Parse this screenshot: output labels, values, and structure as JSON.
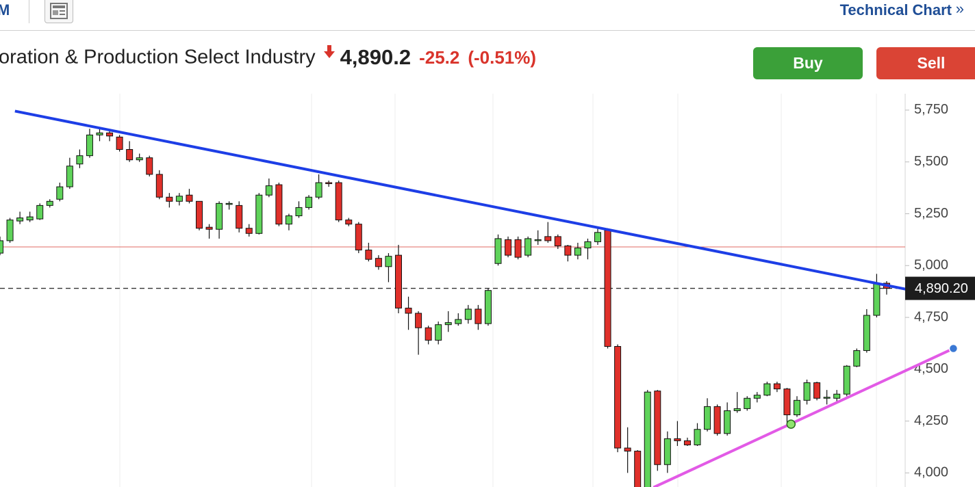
{
  "header": {
    "left_fragment": "M",
    "link": "Technical Chart",
    "link_arrow": "»"
  },
  "quote": {
    "name": "oration & Production Select Industry",
    "price": "4,890.2",
    "change": "-25.2",
    "change_pct": "(-0.51%)"
  },
  "buttons": {
    "buy": "Buy",
    "sell": "Sell"
  },
  "chart_data": {
    "type": "candlestick",
    "up_color": "#5fd35a",
    "down_color": "#e0302a",
    "ylim": [
      3932,
      5829
    ],
    "yticks": [
      {
        "value": 5750,
        "label": "5,750"
      },
      {
        "value": 5500,
        "label": "5,500"
      },
      {
        "value": 5250,
        "label": "5,250"
      },
      {
        "value": 5000,
        "label": "5,000"
      },
      {
        "value": 4750,
        "label": "4,750"
      },
      {
        "value": 4500,
        "label": "4,500"
      },
      {
        "value": 4250,
        "label": "4,250"
      },
      {
        "value": 4000,
        "label": "4,000"
      }
    ],
    "open": [
      5060,
      5120,
      5215,
      5220,
      5225,
      5290,
      5320,
      5380,
      5490,
      5530,
      5630,
      5640,
      5620,
      5560,
      5510,
      5520,
      5440,
      5330,
      5310,
      5340,
      5310,
      5185,
      5175,
      5295,
      5290,
      5180,
      5155,
      5340,
      5390,
      5200,
      5240,
      5280,
      5330,
      5400,
      5400,
      5220,
      5200,
      5075,
      5035,
      4995,
      5050,
      4795,
      4770,
      4700,
      4640,
      4715,
      4720,
      4740,
      4790,
      4720,
      5010,
      5125,
      5125,
      5050,
      5120,
      5140,
      5140,
      5095,
      5050,
      5085,
      5115,
      5170,
      4610,
      4120,
      4105,
      3930,
      4395,
      4040,
      4165,
      4155,
      4135,
      4210,
      4320,
      4190,
      4300,
      4310,
      4360,
      4375,
      4430,
      4405,
      4280,
      4350,
      4435,
      4360,
      4360,
      4380,
      4515,
      4590,
      4760,
      4915
    ],
    "high": [
      5140,
      5230,
      5260,
      5260,
      5300,
      5320,
      5400,
      5520,
      5560,
      5660,
      5660,
      5650,
      5630,
      5600,
      5540,
      5530,
      5460,
      5350,
      5350,
      5370,
      5310,
      5200,
      5310,
      5310,
      5310,
      5200,
      5350,
      5420,
      5400,
      5250,
      5310,
      5340,
      5440,
      5410,
      5410,
      5230,
      5210,
      5110,
      5050,
      5060,
      5100,
      4850,
      4780,
      4710,
      4730,
      4780,
      4770,
      4810,
      4810,
      4890,
      5150,
      5140,
      5140,
      5140,
      5170,
      5210,
      5150,
      5100,
      5110,
      5130,
      5180,
      5180,
      4620,
      4220,
      4110,
      4400,
      4400,
      4200,
      4250,
      4170,
      4240,
      4360,
      4330,
      4340,
      4390,
      4370,
      4390,
      4440,
      4440,
      4410,
      4370,
      4450,
      4440,
      4400,
      4400,
      4520,
      4600,
      4790,
      4960,
      4925
    ],
    "low": [
      5050,
      5110,
      5200,
      5210,
      5220,
      5280,
      5310,
      5370,
      5470,
      5520,
      5600,
      5600,
      5550,
      5500,
      5500,
      5430,
      5320,
      5280,
      5290,
      5300,
      5170,
      5130,
      5130,
      5270,
      5160,
      5140,
      5150,
      5330,
      5190,
      5170,
      5230,
      5270,
      5320,
      5380,
      5210,
      5190,
      5060,
      5020,
      4980,
      4920,
      4770,
      4690,
      4570,
      4620,
      4620,
      4680,
      4710,
      4720,
      4690,
      4710,
      5000,
      5040,
      5030,
      5040,
      5100,
      5110,
      5080,
      5020,
      5030,
      5030,
      5100,
      4600,
      4100,
      4000,
      3930,
      3930,
      4010,
      4000,
      4130,
      4130,
      4130,
      4200,
      4180,
      4180,
      4290,
      4300,
      4340,
      4370,
      4390,
      4240,
      4270,
      4330,
      4350,
      4330,
      4340,
      4370,
      4510,
      4580,
      4750,
      4860
    ],
    "close": [
      5120,
      5220,
      5230,
      5235,
      5290,
      5310,
      5380,
      5480,
      5530,
      5630,
      5640,
      5625,
      5560,
      5510,
      5520,
      5440,
      5330,
      5310,
      5335,
      5310,
      5180,
      5175,
      5300,
      5300,
      5180,
      5155,
      5340,
      5385,
      5200,
      5240,
      5280,
      5330,
      5400,
      5395,
      5220,
      5200,
      5075,
      5030,
      4995,
      5045,
      4795,
      4770,
      4700,
      4640,
      4715,
      4725,
      4740,
      4790,
      4720,
      4880,
      5130,
      5050,
      5040,
      5130,
      5125,
      5120,
      5095,
      5050,
      5085,
      5115,
      5160,
      4610,
      4120,
      4105,
      3930,
      4390,
      4040,
      4165,
      4155,
      4135,
      4210,
      4320,
      4190,
      4300,
      4310,
      4360,
      4375,
      4430,
      4405,
      4280,
      4350,
      4435,
      4360,
      4365,
      4380,
      4515,
      4590,
      4760,
      4915,
      4890.2
    ],
    "reference_line": {
      "value": 5090,
      "color": "#e06a60"
    },
    "last_price": 4890.2,
    "last_price_label": "4,890.20",
    "trendlines": [
      {
        "color": "#1d3ee6",
        "x": [
          1.5,
          92.1
        ],
        "values": [
          5745,
          4875
        ]
      },
      {
        "color": "#e25ae6",
        "x": [
          65.6,
          95.7
        ],
        "values": [
          3930,
          4600
        ]
      }
    ],
    "points": [
      {
        "color": "#8fe36e",
        "x": 79.4,
        "value": 4235
      },
      {
        "color": "#3a78d4",
        "x": 95.7,
        "value": 4600
      }
    ]
  }
}
